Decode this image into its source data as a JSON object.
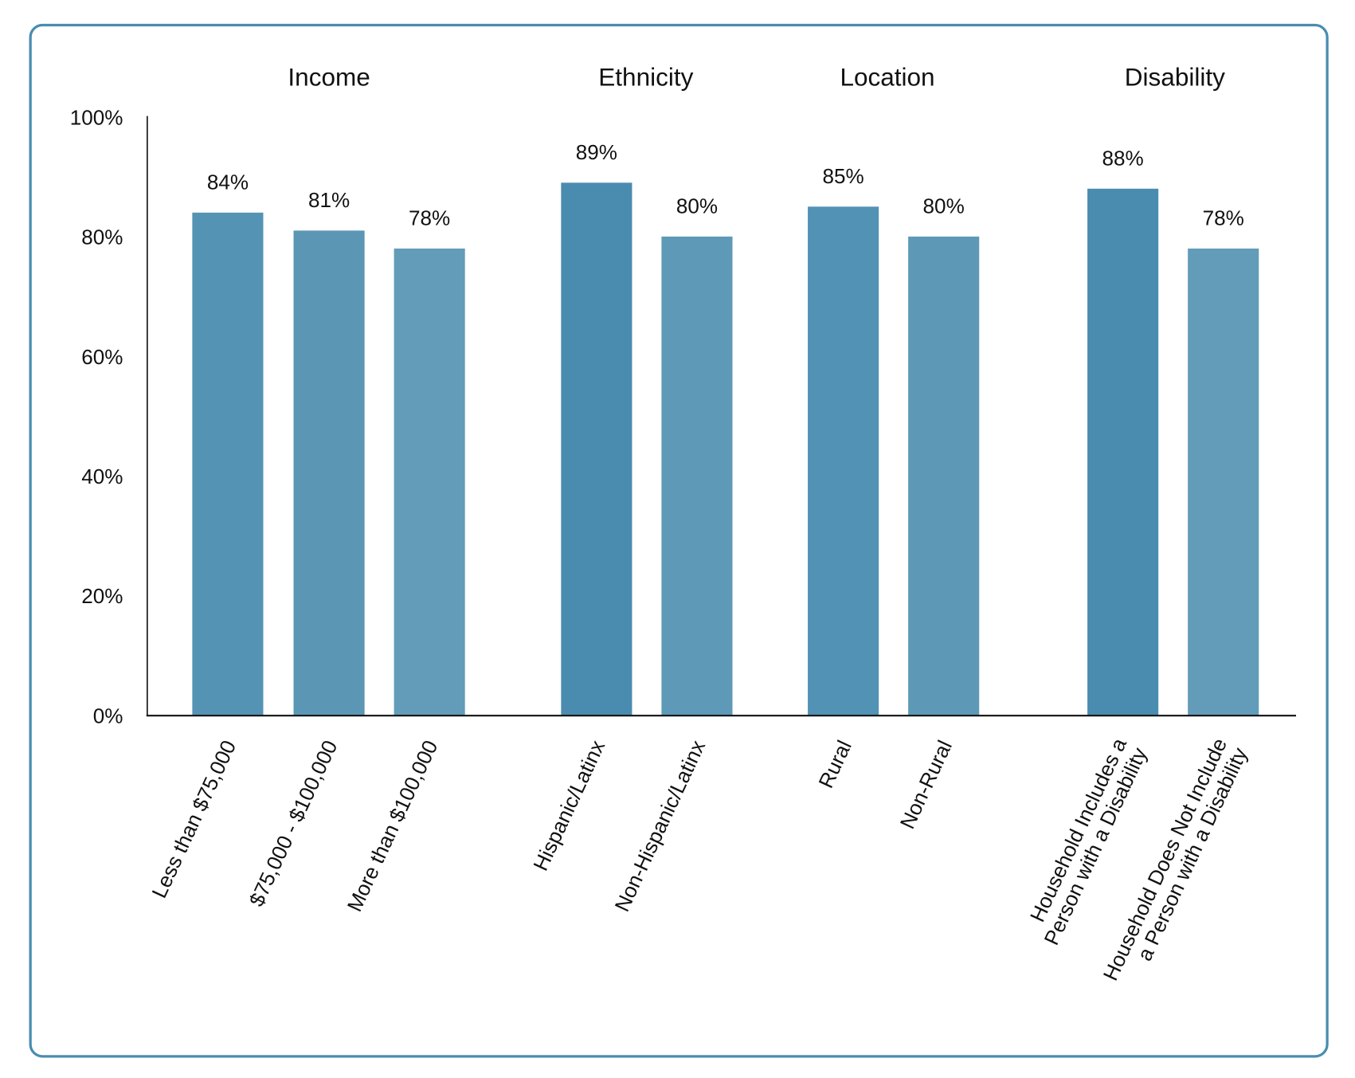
{
  "chart_data": {
    "type": "bar",
    "title": "",
    "xlabel": "",
    "ylabel": "",
    "ylim": [
      0,
      100
    ],
    "yticks": [
      "0%",
      "20%",
      "40%",
      "60%",
      "80%",
      "100%"
    ],
    "grid": false,
    "groups": [
      {
        "name": "Income",
        "categories": [
          {
            "label": [
              "Less than $75,000"
            ],
            "value": 84,
            "value_label": "84%",
            "color": "#5493b4"
          },
          {
            "label": [
              "$75,000 - $100,000"
            ],
            "value": 81,
            "value_label": "81%",
            "color": "#5b97b5"
          },
          {
            "label": [
              "More than $100,000"
            ],
            "value": 78,
            "value_label": "78%",
            "color": "#639cb9"
          }
        ]
      },
      {
        "name": "Ethnicity",
        "categories": [
          {
            "label": [
              "Hispanic/Latinx"
            ],
            "value": 89,
            "value_label": "89%",
            "color": "#4a8caf"
          },
          {
            "label": [
              "Non-Hispanic/Latinx"
            ],
            "value": 80,
            "value_label": "80%",
            "color": "#5e99b7"
          }
        ]
      },
      {
        "name": "Location",
        "categories": [
          {
            "label": [
              "Rural"
            ],
            "value": 85,
            "value_label": "85%",
            "color": "#5292b4"
          },
          {
            "label": [
              "Non-Rural"
            ],
            "value": 80,
            "value_label": "80%",
            "color": "#5d99b7"
          }
        ]
      },
      {
        "name": "Disability",
        "categories": [
          {
            "label": [
              "Household Includes a",
              "Person with a Disability"
            ],
            "value": 88,
            "value_label": "88%",
            "color": "#4a8caf"
          },
          {
            "label": [
              "Household Does Not Include",
              "a Person with a Disability"
            ],
            "value": 78,
            "value_label": "78%",
            "color": "#639cb9"
          }
        ]
      }
    ]
  },
  "frame_color": "#4a8cb0"
}
